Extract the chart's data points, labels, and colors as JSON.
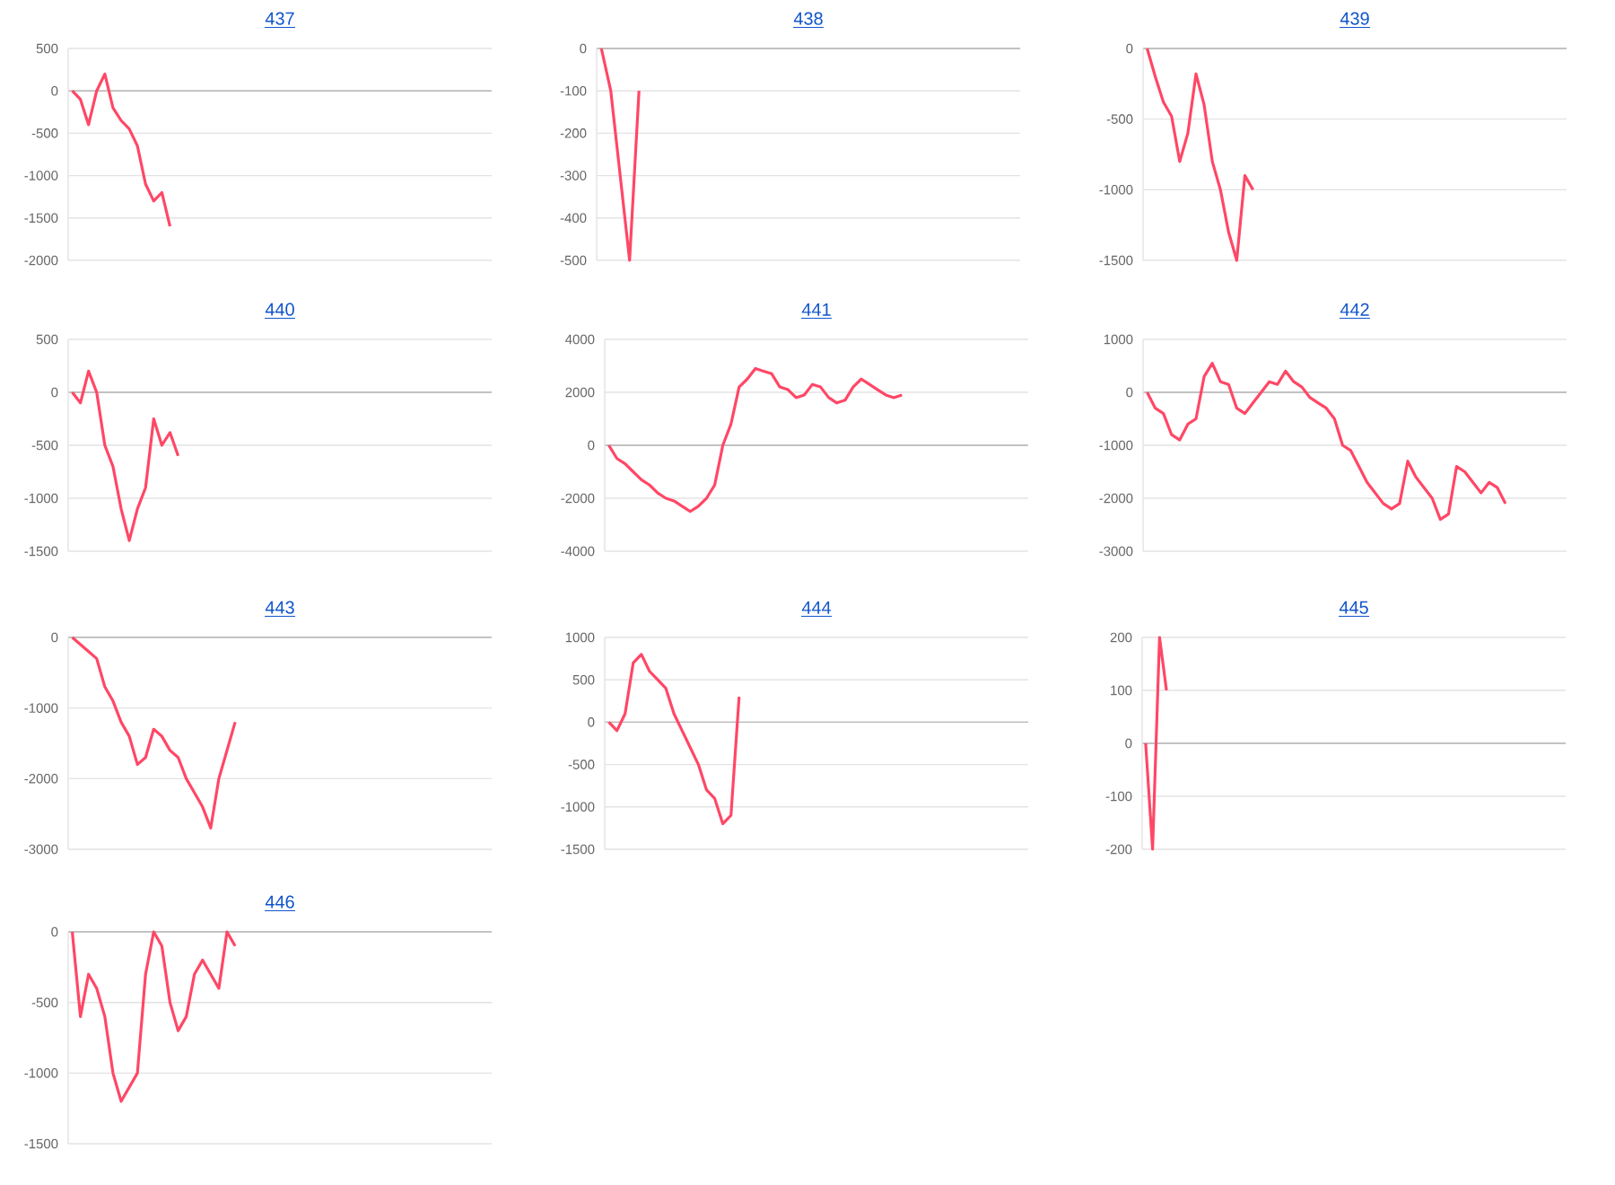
{
  "chart_data": [
    {
      "type": "line",
      "title": "437",
      "color": "#ff4766",
      "grid": "y",
      "tick_labels": "y",
      "ylim": [
        -2000,
        500
      ],
      "yticks": [
        -2000,
        -1500,
        -1000,
        -500,
        0,
        500
      ],
      "categories": [
        null,
        null,
        null,
        null,
        null,
        null,
        null,
        null,
        null,
        null,
        null,
        null,
        null,
        null,
        null,
        null,
        null,
        null,
        null,
        null,
        null,
        null,
        null,
        null,
        null,
        null,
        null,
        null,
        null,
        null,
        null,
        null,
        null,
        null,
        null,
        null,
        null,
        null,
        null,
        null,
        null,
        null,
        null,
        null,
        null,
        null,
        null,
        null,
        null,
        null,
        null,
        null
      ],
      "values": [
        0,
        -100,
        -400,
        0,
        200,
        -200,
        -350,
        -450,
        -650,
        -1100,
        -1300,
        -1200,
        -1600,
        null,
        null,
        null,
        null,
        null,
        null,
        null,
        null,
        null,
        null,
        null,
        null,
        null,
        null,
        null,
        null,
        null,
        null,
        null,
        null,
        null,
        null,
        null,
        null,
        null,
        null,
        null,
        null,
        null,
        null,
        null,
        null,
        null,
        null,
        null,
        null,
        null,
        null,
        null
      ]
    },
    {
      "type": "line",
      "title": "438",
      "color": "#ff4766",
      "grid": "y",
      "tick_labels": "y",
      "ylim": [
        -500,
        0
      ],
      "yticks": [
        -500,
        -400,
        -300,
        -200,
        -100,
        0
      ],
      "categories": [
        null,
        null,
        null,
        null,
        null,
        null,
        null,
        null,
        null,
        null,
        null,
        null,
        null,
        null,
        null,
        null,
        null,
        null,
        null,
        null,
        null,
        null,
        null,
        null,
        null,
        null,
        null,
        null,
        null,
        null,
        null,
        null,
        null,
        null,
        null,
        null,
        null,
        null,
        null,
        null,
        null,
        null,
        null,
        null,
        null
      ],
      "values": [
        0,
        -100,
        -300,
        -500,
        -100,
        null,
        null,
        null,
        null,
        null,
        null,
        null,
        null,
        null,
        null,
        null,
        null,
        null,
        null,
        null,
        null,
        null,
        null,
        null,
        null,
        null,
        null,
        null,
        null,
        null,
        null,
        null,
        null,
        null,
        null,
        null,
        null,
        null,
        null,
        null,
        null,
        null,
        null,
        null,
        null
      ]
    },
    {
      "type": "line",
      "title": "439",
      "color": "#ff4766",
      "grid": "y",
      "tick_labels": "y",
      "ylim": [
        -1500,
        0
      ],
      "yticks": [
        -1500,
        -1000,
        -500,
        0
      ],
      "categories": [
        null,
        null,
        null,
        null,
        null,
        null,
        null,
        null,
        null,
        null,
        null,
        null,
        null,
        null,
        null,
        null,
        null,
        null,
        null,
        null,
        null,
        null,
        null,
        null,
        null,
        null,
        null,
        null,
        null,
        null,
        null,
        null,
        null,
        null,
        null,
        null,
        null,
        null,
        null,
        null,
        null,
        null,
        null,
        null,
        null,
        null,
        null,
        null,
        null,
        null,
        null,
        null
      ],
      "values": [
        0,
        -200,
        -380,
        -480,
        -800,
        -600,
        -180,
        -400,
        -800,
        -1000,
        -1300,
        -1500,
        -900,
        -1000,
        null,
        null,
        null,
        null,
        null,
        null,
        null,
        null,
        null,
        null,
        null,
        null,
        null,
        null,
        null,
        null,
        null,
        null,
        null,
        null,
        null,
        null,
        null,
        null,
        null,
        null,
        null,
        null,
        null,
        null,
        null,
        null,
        null,
        null,
        null,
        null,
        null,
        null
      ]
    },
    {
      "type": "line",
      "title": "440",
      "color": "#ff4766",
      "grid": "y",
      "tick_labels": "y",
      "ylim": [
        -1500,
        500
      ],
      "yticks": [
        -1500,
        -1000,
        -500,
        0,
        500
      ],
      "categories": [
        null,
        null,
        null,
        null,
        null,
        null,
        null,
        null,
        null,
        null,
        null,
        null,
        null,
        null,
        null,
        null,
        null,
        null,
        null,
        null,
        null,
        null,
        null,
        null,
        null,
        null,
        null,
        null,
        null,
        null,
        null,
        null,
        null,
        null,
        null,
        null,
        null,
        null,
        null,
        null,
        null,
        null,
        null,
        null,
        null,
        null,
        null,
        null,
        null,
        null,
        null,
        null
      ],
      "values": [
        0,
        -100,
        200,
        0,
        -500,
        -700,
        -1100,
        -1400,
        -1100,
        -900,
        -250,
        -500,
        -380,
        -600,
        null,
        null,
        null,
        null,
        null,
        null,
        null,
        null,
        null,
        null,
        null,
        null,
        null,
        null,
        null,
        null,
        null,
        null,
        null,
        null,
        null,
        null,
        null,
        null,
        null,
        null,
        null,
        null,
        null,
        null,
        null,
        null,
        null,
        null,
        null,
        null,
        null,
        null
      ]
    },
    {
      "type": "line",
      "title": "441",
      "color": "#ff4766",
      "grid": "y",
      "tick_labels": "y",
      "ylim": [
        -4000,
        4000
      ],
      "yticks": [
        -4000,
        -2000,
        0,
        2000,
        4000
      ],
      "categories": [
        null,
        null,
        null,
        null,
        null,
        null,
        null,
        null,
        null,
        null,
        null,
        null,
        null,
        null,
        null,
        null,
        null,
        null,
        null,
        null,
        null,
        null,
        null,
        null,
        null,
        null,
        null,
        null,
        null,
        null,
        null,
        null,
        null,
        null,
        null,
        null,
        null,
        null,
        null,
        null,
        null,
        null,
        null,
        null,
        null,
        null,
        null,
        null,
        null,
        null,
        null,
        null
      ],
      "values": [
        0,
        -500,
        -700,
        -1000,
        -1300,
        -1500,
        -1800,
        -2000,
        -2100,
        -2300,
        -2500,
        -2300,
        -2000,
        -1500,
        0,
        800,
        2200,
        2500,
        2900,
        2800,
        2700,
        2200,
        2100,
        1800,
        1900,
        2300,
        2200,
        1800,
        1600,
        1700,
        2200,
        2500,
        2300,
        2100,
        1900,
        1800,
        1900,
        null,
        null,
        null,
        null,
        null,
        null,
        null,
        null,
        null,
        null,
        null,
        null,
        null,
        null,
        null
      ]
    },
    {
      "type": "line",
      "title": "442",
      "color": "#ff4766",
      "grid": "y",
      "tick_labels": "y",
      "ylim": [
        -3000,
        1000
      ],
      "yticks": [
        -3000,
        -2000,
        -1000,
        0,
        1000
      ],
      "categories": [
        null,
        null,
        null,
        null,
        null,
        null,
        null,
        null,
        null,
        null,
        null,
        null,
        null,
        null,
        null,
        null,
        null,
        null,
        null,
        null,
        null,
        null,
        null,
        null,
        null,
        null,
        null,
        null,
        null,
        null,
        null,
        null,
        null,
        null,
        null,
        null,
        null,
        null,
        null,
        null,
        null,
        null,
        null,
        null,
        null,
        null,
        null,
        null,
        null,
        null,
        null,
        null
      ],
      "values": [
        0,
        -300,
        -400,
        -800,
        -900,
        -600,
        -500,
        300,
        550,
        200,
        150,
        -300,
        -400,
        -200,
        0,
        200,
        150,
        400,
        200,
        100,
        -100,
        -200,
        -300,
        -500,
        -1000,
        -1100,
        -1400,
        -1700,
        -1900,
        -2100,
        -2200,
        -2100,
        -1300,
        -1600,
        -1800,
        -2000,
        -2400,
        -2300,
        -1400,
        -1500,
        -1700,
        -1900,
        -1700,
        -1800,
        -2100,
        null,
        null,
        null,
        null,
        null,
        null,
        null
      ]
    },
    {
      "type": "line",
      "title": "443",
      "color": "#ff4766",
      "grid": "y",
      "tick_labels": "y",
      "ylim": [
        -3000,
        0
      ],
      "yticks": [
        -3000,
        -2000,
        -1000,
        0
      ],
      "categories": [
        null,
        null,
        null,
        null,
        null,
        null,
        null,
        null,
        null,
        null,
        null,
        null,
        null,
        null,
        null,
        null,
        null,
        null,
        null,
        null,
        null,
        null,
        null,
        null,
        null,
        null,
        null,
        null,
        null,
        null,
        null,
        null,
        null,
        null,
        null,
        null,
        null,
        null,
        null,
        null,
        null,
        null,
        null,
        null,
        null,
        null,
        null,
        null,
        null,
        null,
        null,
        null
      ],
      "values": [
        0,
        -100,
        -200,
        -300,
        -700,
        -900,
        -1200,
        -1400,
        -1800,
        -1700,
        -1300,
        -1400,
        -1600,
        -1700,
        -2000,
        -2200,
        -2400,
        -2700,
        -2000,
        -1600,
        -1200,
        null,
        null,
        null,
        null,
        null,
        null,
        null,
        null,
        null,
        null,
        null,
        null,
        null,
        null,
        null,
        null,
        null,
        null,
        null,
        null,
        null,
        null,
        null,
        null,
        null,
        null,
        null,
        null,
        null,
        null,
        null
      ]
    },
    {
      "type": "line",
      "title": "444",
      "color": "#ff4766",
      "grid": "y",
      "tick_labels": "y",
      "ylim": [
        -1500,
        1000
      ],
      "yticks": [
        -1500,
        -1000,
        -500,
        0,
        500,
        1000
      ],
      "categories": [
        null,
        null,
        null,
        null,
        null,
        null,
        null,
        null,
        null,
        null,
        null,
        null,
        null,
        null,
        null,
        null,
        null,
        null,
        null,
        null,
        null,
        null,
        null,
        null,
        null,
        null,
        null,
        null,
        null,
        null,
        null,
        null,
        null,
        null,
        null,
        null,
        null,
        null,
        null,
        null,
        null,
        null,
        null,
        null,
        null,
        null,
        null,
        null,
        null,
        null,
        null,
        null
      ],
      "values": [
        0,
        -100,
        100,
        700,
        800,
        600,
        500,
        400,
        100,
        -100,
        -300,
        -500,
        -800,
        -900,
        -1200,
        -1100,
        300,
        null,
        null,
        null,
        null,
        null,
        null,
        null,
        null,
        null,
        null,
        null,
        null,
        null,
        null,
        null,
        null,
        null,
        null,
        null,
        null,
        null,
        null,
        null,
        null,
        null,
        null,
        null,
        null,
        null,
        null,
        null,
        null,
        null,
        null,
        null
      ]
    },
    {
      "type": "line",
      "title": "445",
      "color": "#ff4766",
      "grid": "y",
      "tick_labels": "y",
      "ylim": [
        -200,
        200
      ],
      "yticks": [
        -200,
        -100,
        0,
        100,
        200
      ],
      "categories": [
        null,
        null,
        null,
        null,
        null,
        null,
        null,
        null,
        null,
        null,
        null,
        null,
        null,
        null,
        null,
        null,
        null,
        null,
        null,
        null,
        null,
        null,
        null,
        null,
        null,
        null,
        null,
        null,
        null,
        null,
        null,
        null,
        null,
        null,
        null,
        null,
        null,
        null,
        null,
        null,
        null,
        null,
        null,
        null,
        null,
        null,
        null,
        null,
        null,
        null,
        null,
        null,
        null,
        null,
        null,
        null,
        null,
        null,
        null,
        null,
        null
      ],
      "values": [
        0,
        -200,
        200,
        100,
        null,
        null,
        null,
        null,
        null,
        null,
        null,
        null,
        null,
        null,
        null,
        null,
        null,
        null,
        null,
        null,
        null,
        null,
        null,
        null,
        null,
        null,
        null,
        null,
        null,
        null,
        null,
        null,
        null,
        null,
        null,
        null,
        null,
        null,
        null,
        null,
        null,
        null,
        null,
        null,
        null,
        null,
        null,
        null,
        null,
        null,
        null,
        null,
        null,
        null,
        null,
        null,
        null,
        null,
        null,
        null,
        null
      ]
    },
    {
      "type": "line",
      "title": "446",
      "color": "#ff4766",
      "grid": "y",
      "tick_labels": "y",
      "ylim": [
        -1500,
        0
      ],
      "yticks": [
        -1500,
        -1000,
        -500,
        0
      ],
      "categories": [
        null,
        null,
        null,
        null,
        null,
        null,
        null,
        null,
        null,
        null,
        null,
        null,
        null,
        null,
        null,
        null,
        null,
        null,
        null,
        null,
        null,
        null,
        null,
        null,
        null,
        null,
        null,
        null,
        null,
        null,
        null,
        null,
        null,
        null,
        null,
        null,
        null,
        null,
        null,
        null,
        null,
        null,
        null,
        null,
        null,
        null,
        null,
        null,
        null,
        null,
        null,
        null
      ],
      "values": [
        0,
        -600,
        -300,
        -400,
        -600,
        -1000,
        -1200,
        -1100,
        -1000,
        -300,
        0,
        -100,
        -500,
        -700,
        -600,
        -300,
        -200,
        -300,
        -400,
        0,
        -100,
        null,
        null,
        null,
        null,
        null,
        null,
        null,
        null,
        null,
        null,
        null,
        null,
        null,
        null,
        null,
        null,
        null,
        null,
        null,
        null,
        null,
        null,
        null,
        null,
        null,
        null,
        null,
        null,
        null,
        null,
        null
      ]
    }
  ]
}
